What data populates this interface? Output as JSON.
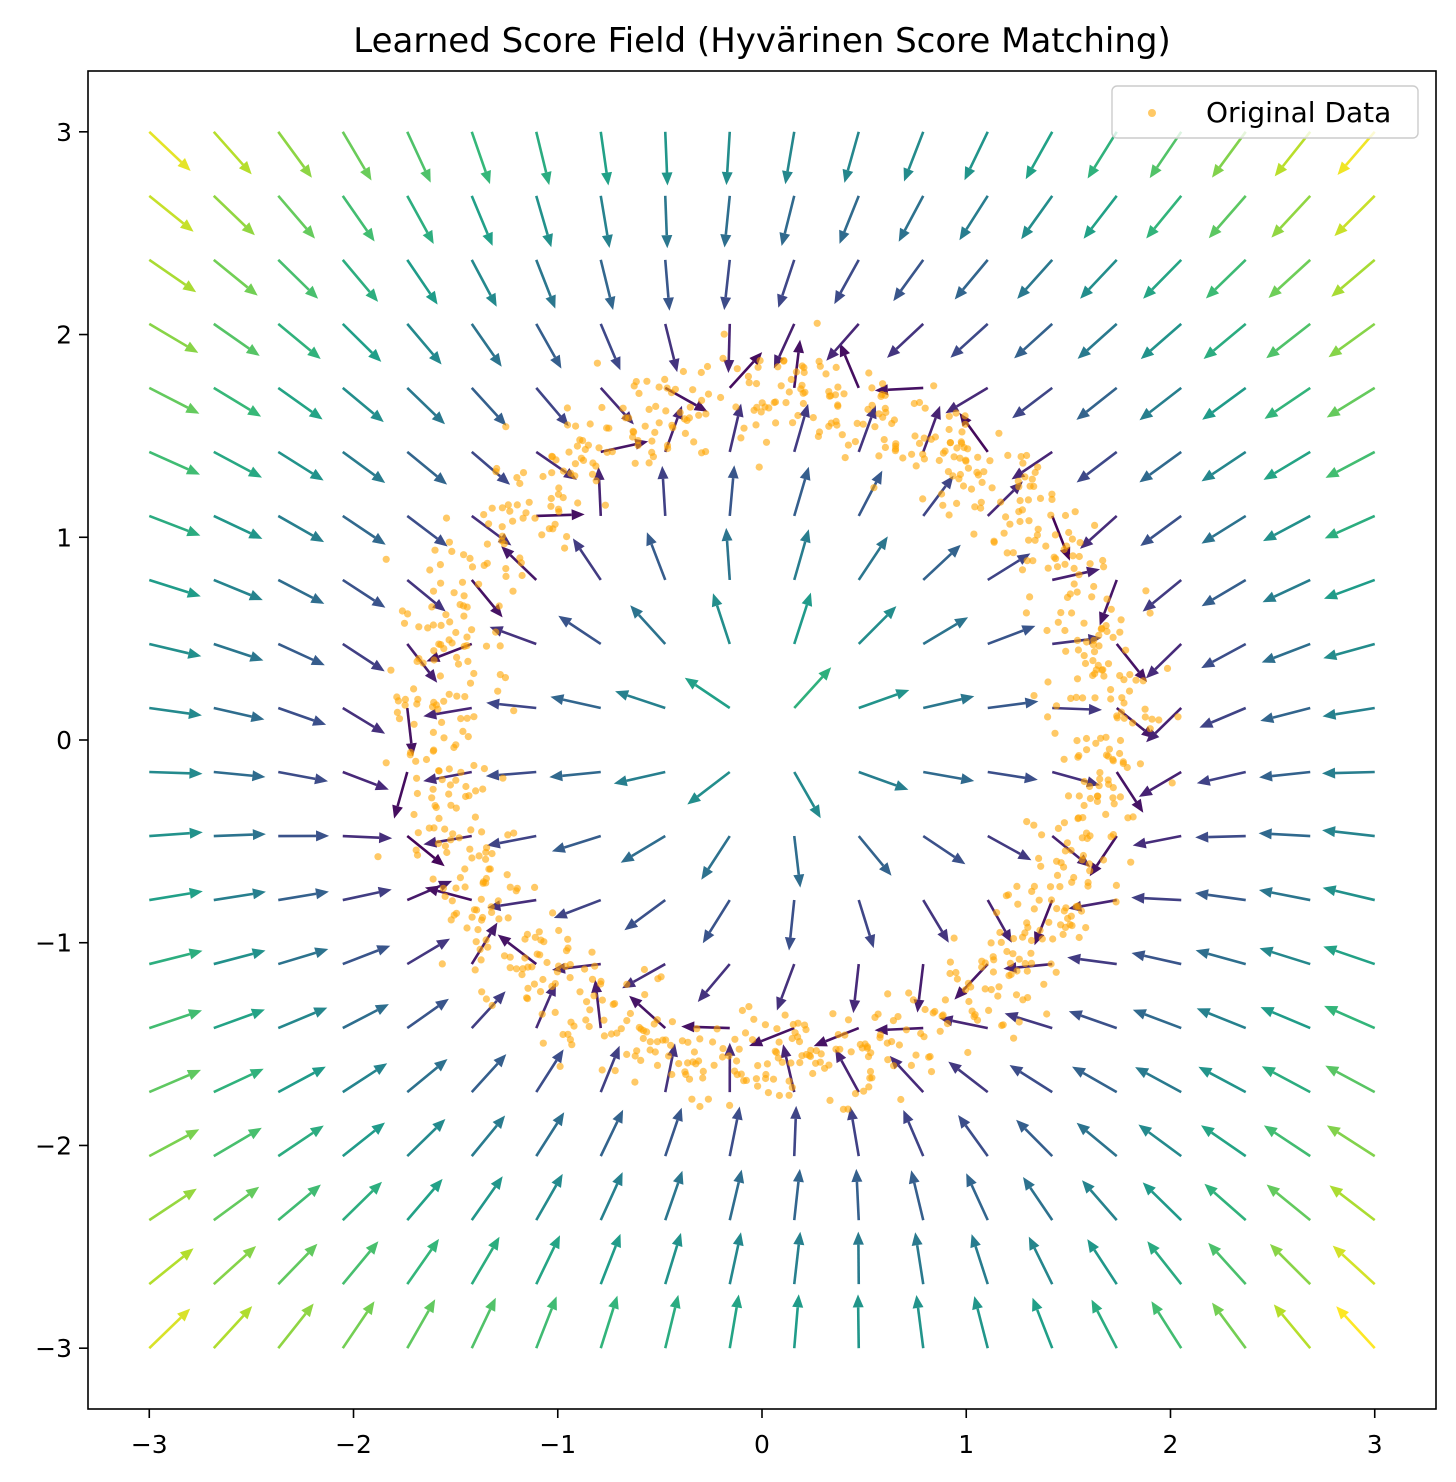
{
  "chart_data": {
    "type": "quiver",
    "title": "Learned Score Field (Hyvärinen Score Matching)",
    "xlabel": "",
    "ylabel": "",
    "xlim": [
      -3.3,
      3.3
    ],
    "ylim": [
      -3.3,
      3.3
    ],
    "xticks": [
      -3,
      -2,
      -1,
      0,
      1,
      2,
      3
    ],
    "yticks": [
      -3,
      -2,
      -1,
      0,
      1,
      2,
      3
    ],
    "xtick_labels": [
      "−3",
      "−2",
      "−1",
      "0",
      "1",
      "2",
      "3"
    ],
    "ytick_labels": [
      "−3",
      "−2",
      "−1",
      "0",
      "1",
      "2",
      "3"
    ],
    "grid": false,
    "legend": {
      "position": "top-right",
      "entries": [
        "Original Data"
      ]
    },
    "series": [
      {
        "name": "Original Data",
        "type": "scatter",
        "color": "#ffa500",
        "opacity": 0.6,
        "description_of_distribution": "noisy ring of samples"
      },
      {
        "name": "",
        "type": "quiver",
        "colormap": "viridis"
      }
    ],
    "quiver_grid": {
      "nx": 20,
      "ny": 20,
      "x_range": [
        -3,
        3
      ],
      "y_range": [
        -3,
        3
      ]
    },
    "ring": {
      "center": [
        0.05,
        0.05
      ],
      "radius_x": 1.65,
      "radius_y": 1.65,
      "noise": 0.12,
      "n_points": 1000
    },
    "colors": {
      "scatter": "#ffa500",
      "axes": "#000000"
    }
  }
}
